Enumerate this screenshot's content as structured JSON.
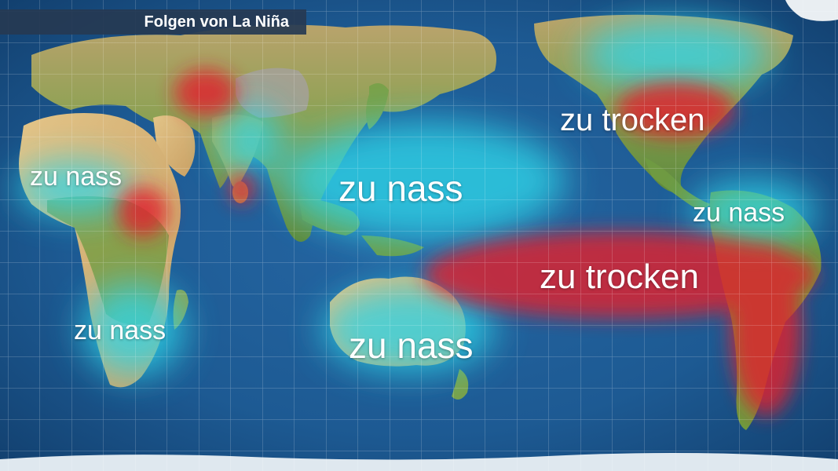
{
  "title": "Folgen von La Niña",
  "labels": [
    {
      "text": "zu nass"
    },
    {
      "text": "zu nass"
    },
    {
      "text": "zu nass"
    },
    {
      "text": "zu nass"
    },
    {
      "text": "zu nass"
    },
    {
      "text": "zu trocken"
    },
    {
      "text": "zu trocken"
    }
  ],
  "colors": {
    "ocean": "#1d5a93",
    "wet_anomaly": "#2fd6e8",
    "dry_anomaly": "#e0232e",
    "label_text": "#ffffff",
    "title_bar": "#263a52"
  }
}
